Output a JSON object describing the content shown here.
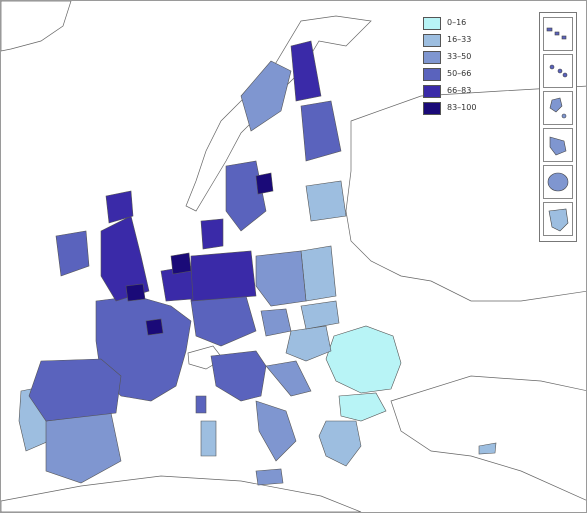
{
  "colors": {
    "sea": "#ffffff",
    "non_data_land": "#ffffff",
    "border": "#555555",
    "classes": [
      "#b8f4f6",
      "#9dbee0",
      "#7f96d0",
      "#5a63bd",
      "#3a2aa8",
      "#1a0a78"
    ]
  },
  "legend": {
    "items": [
      {
        "label": "0–16",
        "color": "#b8f4f6"
      },
      {
        "label": "16–33",
        "color": "#9dbee0"
      },
      {
        "label": "33–50",
        "color": "#7f96d0"
      },
      {
        "label": "50–66",
        "color": "#5a63bd"
      },
      {
        "label": "66–83",
        "color": "#3a2aa8"
      },
      {
        "label": "83–100",
        "color": "#1a0a78"
      }
    ]
  },
  "insets": {
    "items": [
      {
        "name": "canary-islands",
        "color": "#5a63bd"
      },
      {
        "name": "azores",
        "color": "#5a63bd"
      },
      {
        "name": "madeira",
        "color": "#7f96d0"
      },
      {
        "name": "guadeloupe",
        "color": "#7f96d0"
      },
      {
        "name": "reunion",
        "color": "#7f96d0"
      },
      {
        "name": "french-guiana",
        "color": "#9dbee0"
      }
    ]
  }
}
